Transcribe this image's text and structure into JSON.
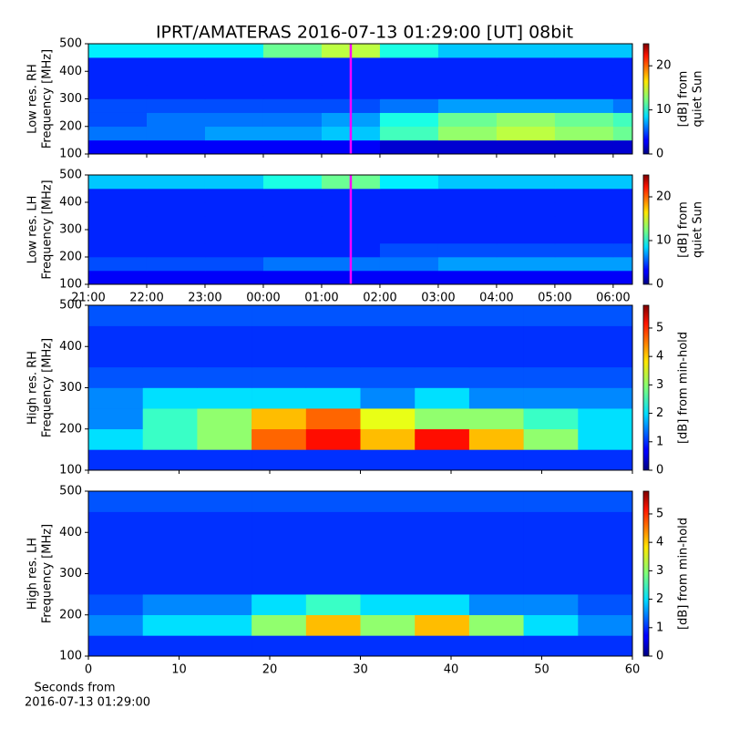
{
  "chart_data": [
    {
      "type": "heatmap",
      "title": "IPRT/AMATERAS 2016-07-13 01:29:00 [UT]   08bit",
      "ylabel": [
        "Low res. RH",
        "Frequency [MHz]"
      ],
      "x_bins": [
        21,
        22,
        23,
        24,
        25,
        26,
        27,
        28,
        29,
        30,
        30.33
      ],
      "y_bins": [
        100,
        150,
        200,
        250,
        300,
        350,
        400,
        450,
        500
      ],
      "z": [
        [
          3,
          3,
          3,
          3,
          3,
          2,
          2,
          2,
          2,
          2
        ],
        [
          6,
          6,
          7,
          7,
          8,
          11,
          13,
          14,
          13,
          12
        ],
        [
          5,
          6,
          6,
          6,
          7,
          10,
          12,
          13,
          12,
          11
        ],
        [
          5,
          5,
          5,
          5,
          5,
          6,
          7,
          7,
          7,
          6
        ],
        [
          4,
          4,
          4,
          4,
          4,
          4,
          4,
          4,
          4,
          4
        ],
        [
          4,
          4,
          4,
          4,
          4,
          4,
          4,
          4,
          4,
          4
        ],
        [
          4,
          4,
          4,
          4,
          4,
          4,
          4,
          4,
          4,
          4
        ],
        [
          9,
          9,
          9,
          12,
          14,
          10,
          8,
          8,
          8,
          8
        ]
      ],
      "xlim": [
        21,
        30.33
      ],
      "ylim": [
        100,
        500
      ],
      "xticks": [
        21,
        22,
        23,
        24,
        25,
        26,
        27,
        28,
        29,
        30
      ],
      "show_xticklabels": false,
      "yticks": [
        100,
        200,
        300,
        400,
        500
      ],
      "marker": {
        "x": 25.5,
        "color": "#ff00ff"
      },
      "clim": [
        0,
        25
      ],
      "cticks": [
        0,
        10,
        20
      ],
      "clabel": [
        "[dB] from",
        "quiet Sun"
      ],
      "colormap": "jet"
    },
    {
      "type": "heatmap",
      "ylabel": [
        "Low res. LH",
        "Frequency [MHz]"
      ],
      "x_bins": [
        21,
        22,
        23,
        24,
        25,
        26,
        27,
        28,
        29,
        30,
        30.33
      ],
      "y_bins": [
        100,
        150,
        200,
        250,
        300,
        350,
        400,
        450,
        500
      ],
      "z": [
        [
          3,
          3,
          3,
          3,
          3,
          3,
          3,
          3,
          3,
          3
        ],
        [
          5,
          5,
          5,
          6,
          6,
          6,
          7,
          7,
          7,
          7
        ],
        [
          4,
          4,
          4,
          4,
          4,
          5,
          5,
          5,
          5,
          5
        ],
        [
          4,
          4,
          4,
          4,
          4,
          4,
          4,
          4,
          4,
          4
        ],
        [
          4,
          4,
          4,
          4,
          4,
          4,
          4,
          4,
          4,
          4
        ],
        [
          4,
          4,
          4,
          4,
          4,
          4,
          4,
          4,
          4,
          4
        ],
        [
          4,
          4,
          4,
          4,
          4,
          4,
          4,
          4,
          4,
          4
        ],
        [
          8,
          8,
          8,
          10,
          12,
          9,
          8,
          8,
          8,
          8
        ]
      ],
      "xlim": [
        21,
        30.33
      ],
      "ylim": [
        100,
        500
      ],
      "xticks": [
        {
          "value": 21,
          "label": "21:00"
        },
        {
          "value": 22,
          "label": "22:00"
        },
        {
          "value": 23,
          "label": "23:00"
        },
        {
          "value": 24,
          "label": "00:00"
        },
        {
          "value": 25,
          "label": "01:00"
        },
        {
          "value": 26,
          "label": "02:00"
        },
        {
          "value": 27,
          "label": "03:00"
        },
        {
          "value": 28,
          "label": "04:00"
        },
        {
          "value": 29,
          "label": "05:00"
        },
        {
          "value": 30,
          "label": "06:00"
        }
      ],
      "show_xticklabels": true,
      "yticks": [
        100,
        200,
        300,
        400,
        500
      ],
      "marker": {
        "x": 25.5,
        "color": "#ff00ff"
      },
      "clim": [
        0,
        25
      ],
      "cticks": [
        0,
        10,
        20
      ],
      "clabel": [
        "[dB] from",
        "quiet Sun"
      ],
      "colormap": "jet"
    },
    {
      "type": "heatmap",
      "ylabel": [
        "High res. RH",
        "Frequency [MHz]"
      ],
      "x_bins": [
        0,
        6,
        12,
        18,
        24,
        30,
        36,
        42,
        48,
        54,
        60
      ],
      "y_bins": [
        100,
        150,
        200,
        250,
        300,
        350,
        400,
        450,
        500
      ],
      "z": [
        [
          1,
          1,
          1,
          1,
          1,
          1,
          1,
          1,
          1,
          1
        ],
        [
          2,
          2.5,
          3,
          4.5,
          5,
          4,
          5,
          4,
          3,
          2
        ],
        [
          1.5,
          2.5,
          3,
          4,
          4.5,
          3.5,
          3,
          3,
          2.5,
          2
        ],
        [
          1.5,
          2,
          2,
          2,
          2,
          1.5,
          2,
          1.5,
          1.5,
          1.5
        ],
        [
          1.2,
          1.2,
          1.2,
          1.2,
          1.2,
          1.2,
          1.2,
          1.2,
          1.2,
          1.2
        ],
        [
          1,
          1,
          1,
          1,
          1,
          1,
          1,
          1,
          1,
          1
        ],
        [
          1,
          1,
          1,
          1,
          1,
          1,
          1,
          1,
          1,
          1
        ],
        [
          1.2,
          1.2,
          1.2,
          1.2,
          1.2,
          1.2,
          1.2,
          1.2,
          1.2,
          1.2
        ]
      ],
      "xlim": [
        0,
        60
      ],
      "ylim": [
        100,
        500
      ],
      "xticks": [
        0,
        10,
        20,
        30,
        40,
        50,
        60
      ],
      "show_xticklabels": false,
      "yticks": [
        100,
        200,
        300,
        400,
        500
      ],
      "clim": [
        0,
        5.8
      ],
      "cticks": [
        0,
        1,
        2,
        3,
        4,
        5
      ],
      "clabel": [
        "[dB] from min-hold"
      ],
      "colormap": "jet"
    },
    {
      "type": "heatmap",
      "ylabel": [
        "High res. LH",
        "Frequency [MHz]"
      ],
      "xlabel": [
        "Seconds from",
        "2016-07-13 01:29:00"
      ],
      "x_bins": [
        0,
        6,
        12,
        18,
        24,
        30,
        36,
        42,
        48,
        54,
        60
      ],
      "y_bins": [
        100,
        150,
        200,
        250,
        300,
        350,
        400,
        450,
        500
      ],
      "z": [
        [
          1,
          1,
          1,
          1,
          1,
          1,
          1,
          1,
          1,
          1
        ],
        [
          1.5,
          2,
          2,
          3,
          4,
          3,
          4,
          3,
          2,
          1.5
        ],
        [
          1.2,
          1.5,
          1.5,
          2,
          2.5,
          2,
          2,
          1.5,
          1.5,
          1.2
        ],
        [
          1,
          1,
          1,
          1,
          1,
          1,
          1,
          1,
          1,
          1
        ],
        [
          1,
          1,
          1,
          1,
          1,
          1,
          1,
          1,
          1,
          1
        ],
        [
          1,
          1,
          1,
          1,
          1,
          1,
          1,
          1,
          1,
          1
        ],
        [
          1,
          1,
          1,
          1,
          1,
          1,
          1,
          1,
          1,
          1
        ],
        [
          1.2,
          1.2,
          1.2,
          1.2,
          1.2,
          1.2,
          1.2,
          1.2,
          1.2,
          1.2
        ]
      ],
      "xlim": [
        0,
        60
      ],
      "ylim": [
        100,
        500
      ],
      "xticks": [
        0,
        10,
        20,
        30,
        40,
        50,
        60
      ],
      "show_xticklabels": true,
      "yticks": [
        100,
        200,
        300,
        400,
        500
      ],
      "clim": [
        0,
        5.8
      ],
      "cticks": [
        0,
        1,
        2,
        3,
        4,
        5
      ],
      "clabel": [
        "[dB] from min-hold"
      ],
      "colormap": "jet"
    }
  ]
}
